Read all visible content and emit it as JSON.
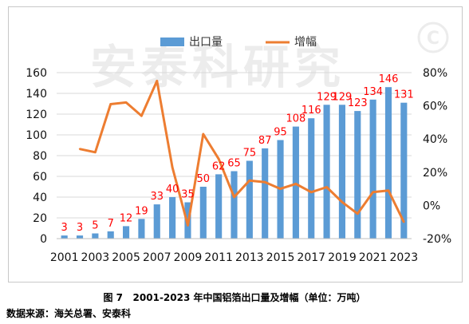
{
  "chart_data": {
    "type": "bar+line",
    "categories": [
      "2001",
      "2002",
      "2003",
      "2004",
      "2005",
      "2006",
      "2007",
      "2008",
      "2009",
      "2010",
      "2011",
      "2012",
      "2013",
      "2014",
      "2015",
      "2016",
      "2017",
      "2018",
      "2019",
      "2020",
      "2021",
      "2022",
      "2023"
    ],
    "x_tick_labels": [
      "2001",
      "2003",
      "2005",
      "2007",
      "2009",
      "2011",
      "2013",
      "2015",
      "2017",
      "2019",
      "2021",
      "2023"
    ],
    "series": [
      {
        "name": "出口量",
        "type": "bar",
        "axis": "left",
        "color": "#5b9bd5",
        "values": [
          3,
          3,
          5,
          7,
          12,
          19,
          33,
          40,
          35,
          50,
          62,
          65,
          75,
          87,
          95,
          108,
          116,
          129,
          129,
          123,
          134,
          146,
          131
        ]
      },
      {
        "name": "增幅",
        "type": "line",
        "axis": "right",
        "color": "#ed7d31",
        "values": [
          null,
          34,
          32,
          61,
          62,
          54,
          75,
          23,
          -12,
          43,
          28,
          5,
          15,
          14,
          10,
          13,
          8,
          11,
          2,
          -5,
          8,
          9,
          -10
        ]
      }
    ],
    "y_left": {
      "min": 0,
      "max": 160,
      "ticks": [
        "0",
        "20",
        "40",
        "60",
        "80",
        "100",
        "120",
        "140",
        "160"
      ]
    },
    "y_right": {
      "min": -20,
      "max": 80,
      "ticks": [
        "-20%",
        "0%",
        "20%",
        "40%",
        "60%",
        "80%"
      ]
    },
    "data_labels": [
      "3",
      "3",
      "5",
      "7",
      "12",
      "19",
      "33",
      "40",
      "35",
      "50",
      "62",
      "65",
      "75",
      "87",
      "95",
      "108",
      "116",
      "129",
      "129",
      "123",
      "134",
      "146",
      "131"
    ],
    "data_label_color": "#ff0000",
    "grid": true,
    "legend_position": "top"
  },
  "caption": "图 7   2001-2023 年中国铝箔出口量及增幅（单位：万吨）",
  "source": "数据来源：海关总署、安泰科",
  "watermark": "安泰科研究"
}
